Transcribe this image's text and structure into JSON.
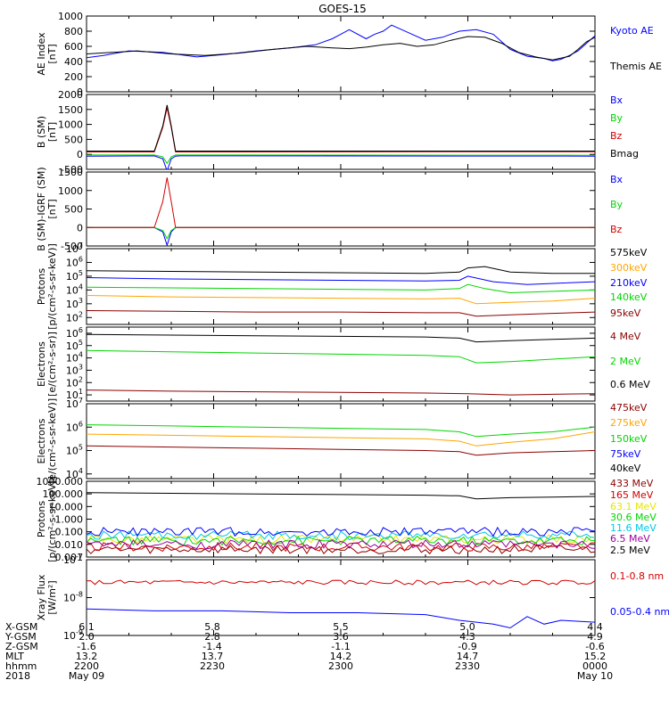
{
  "title": "GOES-15",
  "colors": {
    "black": "#000000",
    "blue": "#0000ff",
    "green": "#00d700",
    "red": "#d40000",
    "orange": "#ffa500",
    "yellow": "#e6e600",
    "cyan": "#00c8e6",
    "purple": "#9b009b",
    "darkred": "#8b0000"
  },
  "footer": {
    "row_labels": [
      "X-GSM",
      "Y-GSM",
      "Z-GSM",
      "MLT",
      "hhmm",
      "2018"
    ],
    "columns": [
      [
        "6.1",
        "2.0",
        "-1.6",
        "13.2",
        "2200",
        "May 09"
      ],
      [
        "5.8",
        "2.8",
        "-1.4",
        "13.7",
        "2230",
        ""
      ],
      [
        "5.5",
        "3.6",
        "-1.1",
        "14.2",
        "2300",
        ""
      ],
      [
        "5.0",
        "4.3",
        "-0.9",
        "14.7",
        "2330",
        ""
      ],
      [
        "4.4",
        "4.9",
        "-0.6",
        "15.2",
        "0000",
        "May 10"
      ]
    ]
  },
  "chart_data": [
    {
      "type": "line",
      "ylabel": "AE Index\n[nT]",
      "ylim": [
        0,
        1000
      ],
      "yticks": [
        "0",
        "200",
        "400",
        "600",
        "800",
        "1000"
      ],
      "x_minutes": [
        0,
        60
      ],
      "series": [
        {
          "name": "Kyoto AE",
          "color": "blue",
          "x": [
            0,
            2,
            5,
            9,
            13,
            16,
            20,
            24,
            27,
            29,
            30,
            31,
            33,
            34,
            35,
            36,
            38,
            40,
            42,
            44,
            46,
            48,
            50,
            52,
            54,
            55,
            56,
            57,
            58,
            59,
            60
          ],
          "y": [
            450,
            480,
            540,
            520,
            460,
            490,
            540,
            580,
            620,
            700,
            760,
            820,
            700,
            760,
            800,
            880,
            780,
            680,
            720,
            800,
            820,
            760,
            560,
            470,
            440,
            410,
            430,
            480,
            540,
            640,
            740
          ]
        },
        {
          "name": "Themis AE",
          "color": "black",
          "x": [
            0,
            3,
            6,
            10,
            14,
            18,
            22,
            26,
            29,
            31,
            33,
            35,
            37,
            39,
            41,
            43,
            45,
            47,
            49,
            51,
            53,
            55,
            57,
            58,
            59,
            60
          ],
          "y": [
            500,
            520,
            540,
            500,
            480,
            510,
            560,
            600,
            580,
            570,
            590,
            620,
            640,
            600,
            620,
            680,
            730,
            720,
            640,
            520,
            460,
            420,
            470,
            560,
            660,
            720
          ]
        }
      ]
    },
    {
      "type": "line",
      "ylabel": "B (SM)\n[nT]",
      "ylim": [
        -500,
        2000
      ],
      "yticks": [
        "-500",
        "0",
        "500",
        "1000",
        "1500",
        "2000"
      ],
      "series": [
        {
          "name": "Bx",
          "color": "blue",
          "x": [
            0,
            8,
            9,
            9.5,
            10,
            10.5,
            11,
            60
          ],
          "y": [
            -60,
            -50,
            -150,
            -550,
            -150,
            -60,
            -50,
            -60
          ]
        },
        {
          "name": "By",
          "color": "green",
          "x": [
            0,
            8,
            9,
            9.5,
            10,
            10.5,
            11,
            60
          ],
          "y": [
            -20,
            -20,
            -80,
            -300,
            -80,
            -20,
            -20,
            -30
          ]
        },
        {
          "name": "Bz",
          "color": "red",
          "x": [
            0,
            8,
            9,
            9.5,
            10,
            10.5,
            11,
            60
          ],
          "y": [
            80,
            80,
            900,
            1550,
            900,
            80,
            80,
            90
          ]
        },
        {
          "name": "Bmag",
          "color": "black",
          "x": [
            0,
            8,
            9,
            9.5,
            10,
            10.5,
            11,
            60
          ],
          "y": [
            110,
            110,
            950,
            1650,
            950,
            110,
            110,
            110
          ]
        }
      ]
    },
    {
      "type": "line",
      "ylabel": "B (SM)-IGRF (SM)\n[nT]",
      "ylim": [
        -500,
        1500
      ],
      "yticks": [
        "-500",
        "0",
        "500",
        "1000",
        "1500"
      ],
      "series": [
        {
          "name": "Bx",
          "color": "blue",
          "x": [
            0,
            8,
            9,
            9.5,
            10,
            10.5,
            11,
            60
          ],
          "y": [
            0,
            0,
            -120,
            -480,
            -120,
            0,
            0,
            0
          ]
        },
        {
          "name": "By",
          "color": "green",
          "x": [
            0,
            8,
            9,
            9.5,
            10,
            10.5,
            11,
            60
          ],
          "y": [
            0,
            0,
            -80,
            -300,
            -80,
            0,
            0,
            0
          ]
        },
        {
          "name": "Bz",
          "color": "red",
          "x": [
            0,
            8,
            9,
            9.5,
            10,
            10.5,
            11,
            60
          ],
          "y": [
            0,
            0,
            700,
            1350,
            700,
            0,
            0,
            0
          ]
        }
      ]
    },
    {
      "type": "line",
      "ylabel": "Protons\n[p/(cm²-s-sr-keV)]",
      "yscale": "log",
      "ylim_log": [
        1.5,
        7
      ],
      "yticks": [
        "10^2",
        "10^3",
        "10^4",
        "10^5",
        "10^6",
        "10^7"
      ],
      "series": [
        {
          "name": "575keV",
          "color": "black",
          "x": [
            0,
            10,
            20,
            30,
            40,
            44,
            45,
            47,
            50,
            55,
            60
          ],
          "y_log": [
            5.4,
            5.35,
            5.3,
            5.25,
            5.2,
            5.3,
            5.6,
            5.7,
            5.3,
            5.2,
            5.2
          ]
        },
        {
          "name": "300keV",
          "color": "orange",
          "x": [
            0,
            10,
            20,
            30,
            40,
            44,
            46,
            50,
            55,
            60
          ],
          "y_log": [
            3.6,
            3.5,
            3.45,
            3.4,
            3.35,
            3.4,
            3.0,
            3.1,
            3.2,
            3.4
          ]
        },
        {
          "name": "210keV",
          "color": "blue",
          "x": [
            0,
            10,
            20,
            30,
            40,
            44,
            45,
            48,
            52,
            56,
            60
          ],
          "y_log": [
            4.9,
            4.8,
            4.75,
            4.7,
            4.65,
            4.7,
            5.0,
            4.6,
            4.4,
            4.5,
            4.6
          ]
        },
        {
          "name": "140keV",
          "color": "green",
          "x": [
            0,
            10,
            20,
            30,
            40,
            44,
            45,
            47,
            50,
            55,
            60
          ],
          "y_log": [
            4.2,
            4.15,
            4.1,
            4.05,
            4.0,
            4.1,
            4.4,
            4.1,
            3.8,
            3.9,
            4.0
          ]
        },
        {
          "name": "95keV",
          "color": "darkred",
          "x": [
            0,
            10,
            20,
            30,
            40,
            44,
            46,
            50,
            55,
            60
          ],
          "y_log": [
            2.5,
            2.45,
            2.4,
            2.4,
            2.35,
            2.35,
            2.1,
            2.2,
            2.3,
            2.4
          ]
        }
      ]
    },
    {
      "type": "line",
      "ylabel": "Electrons\n[e/(cm²-s-sr)]",
      "yscale": "log",
      "ylim_log": [
        0.5,
        6.5
      ],
      "yticks": [
        "10^1",
        "10^2",
        "10^3",
        "10^4",
        "10^5",
        "10^6"
      ],
      "series": [
        {
          "name": "4 MeV",
          "color": "darkred",
          "x": [
            0,
            10,
            20,
            30,
            40,
            45,
            50,
            60
          ],
          "y_log": [
            1.4,
            1.3,
            1.25,
            1.2,
            1.15,
            1.1,
            1.0,
            1.1
          ]
        },
        {
          "name": "2 MeV",
          "color": "green",
          "x": [
            0,
            10,
            20,
            30,
            40,
            44,
            46,
            50,
            55,
            60
          ],
          "y_log": [
            4.6,
            4.5,
            4.4,
            4.3,
            4.2,
            4.1,
            3.6,
            3.7,
            3.9,
            4.1
          ]
        },
        {
          "name": "0.6 MeV",
          "color": "black",
          "x": [
            0,
            10,
            20,
            30,
            40,
            44,
            46,
            50,
            55,
            60
          ],
          "y_log": [
            5.9,
            5.85,
            5.8,
            5.75,
            5.7,
            5.6,
            5.3,
            5.4,
            5.5,
            5.6
          ]
        }
      ]
    },
    {
      "type": "line",
      "ylabel": "Electrons\n[e/(cm²-s-sr-keV)]",
      "yscale": "log",
      "ylim_log": [
        3.8,
        7
      ],
      "yticks": [
        "10^4",
        "10^5",
        "10^6",
        "10^7"
      ],
      "series": [
        {
          "name": "475keV",
          "color": "darkred",
          "x": [
            0,
            10,
            20,
            30,
            40,
            44,
            46,
            50,
            55,
            60
          ],
          "y_log": [
            5.2,
            5.15,
            5.1,
            5.05,
            5.0,
            4.95,
            4.8,
            4.9,
            4.95,
            5.0
          ]
        },
        {
          "name": "275keV",
          "color": "orange",
          "x": [
            0,
            10,
            20,
            30,
            40,
            44,
            46,
            50,
            55,
            60
          ],
          "y_log": [
            5.7,
            5.65,
            5.6,
            5.55,
            5.5,
            5.4,
            5.2,
            5.35,
            5.5,
            5.8
          ]
        },
        {
          "name": "150keV",
          "color": "green",
          "x": [
            0,
            10,
            20,
            30,
            40,
            44,
            46,
            50,
            55,
            60
          ],
          "y_log": [
            6.1,
            6.05,
            6.0,
            5.95,
            5.9,
            5.8,
            5.6,
            5.7,
            5.8,
            6.0
          ]
        },
        {
          "name": "75keV",
          "color": "blue",
          "x": [
            0,
            60
          ],
          "y_log": [
            null,
            null
          ]
        },
        {
          "name": "40keV",
          "color": "black",
          "x": [
            0,
            60
          ],
          "y_log": [
            null,
            null
          ]
        }
      ]
    },
    {
      "type": "line",
      "ylabel": "Protons\n[p/(cm²-s-sr-keV)]",
      "yscale": "log",
      "ylim_log": [
        -3,
        3
      ],
      "yticks": [
        "0.001",
        "0.010",
        "0.100",
        "1.000",
        "10.000",
        "100.000",
        "1000.000"
      ],
      "series": [
        {
          "name": "433 MeV",
          "color": "darkred",
          "noise": true,
          "base_log": -2.4
        },
        {
          "name": "165 MeV",
          "color": "red",
          "noise": true,
          "base_log": -2.2
        },
        {
          "name": "63.1 MeV",
          "color": "yellow",
          "noise": true,
          "base_log": -1.6
        },
        {
          "name": "30.6 MeV",
          "color": "green",
          "noise": true,
          "base_log": -1.7
        },
        {
          "name": "11.6 MeV",
          "color": "cyan",
          "noise": true,
          "base_log": -1.3
        },
        {
          "name": "6.5 MeV",
          "color": "purple",
          "noise": true,
          "base_log": -2.0
        },
        {
          "name": "2.5 MeV",
          "color": "black",
          "x": [
            0,
            10,
            20,
            30,
            40,
            44,
            46,
            50,
            55,
            60
          ],
          "y_log": [
            2.1,
            2.05,
            2.0,
            1.95,
            1.9,
            1.85,
            1.6,
            1.7,
            1.75,
            1.8
          ]
        },
        {
          "name": "",
          "color": "blue",
          "noise": true,
          "base_log": -1.0
        }
      ]
    },
    {
      "type": "line",
      "ylabel": "Xray Flux\n[W/m²]",
      "yscale": "log",
      "ylim_log": [
        -9,
        -7
      ],
      "yticks": [
        "10^-9",
        "10^-8",
        "10^-7"
      ],
      "series": [
        {
          "name": "0.1-0.8 nm",
          "color": "red",
          "noise": true,
          "base_log": -7.6,
          "amp": 0.06
        },
        {
          "name": "0.05-0.4 nm",
          "color": "blue",
          "x": [
            0,
            8,
            16,
            24,
            32,
            40,
            44,
            48,
            50,
            52,
            54,
            56,
            60
          ],
          "y_log": [
            -8.3,
            -8.35,
            -8.35,
            -8.4,
            -8.4,
            -8.45,
            -8.6,
            -8.7,
            -8.8,
            -8.5,
            -8.7,
            -8.6,
            -8.65
          ]
        }
      ]
    }
  ]
}
